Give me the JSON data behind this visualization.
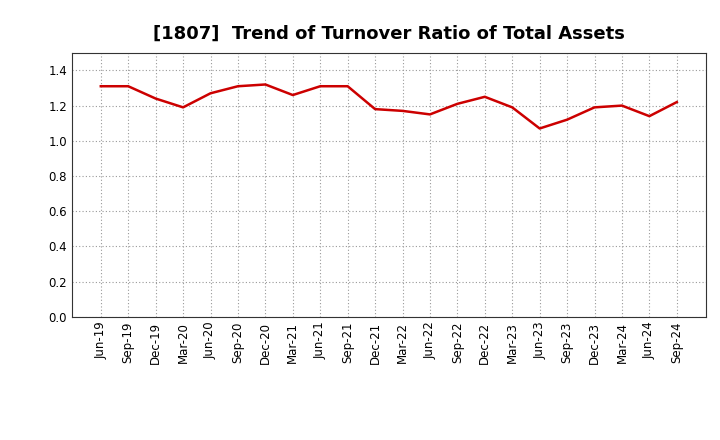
{
  "title": "[1807]  Trend of Turnover Ratio of Total Assets",
  "x_labels": [
    "Jun-19",
    "Sep-19",
    "Dec-19",
    "Mar-20",
    "Jun-20",
    "Sep-20",
    "Dec-20",
    "Mar-21",
    "Jun-21",
    "Sep-21",
    "Dec-21",
    "Mar-22",
    "Jun-22",
    "Sep-22",
    "Dec-22",
    "Mar-23",
    "Jun-23",
    "Sep-23",
    "Dec-23",
    "Mar-24",
    "Jun-24",
    "Sep-24"
  ],
  "values": [
    1.31,
    1.31,
    1.24,
    1.19,
    1.27,
    1.31,
    1.32,
    1.26,
    1.31,
    1.31,
    1.18,
    1.17,
    1.15,
    1.21,
    1.25,
    1.19,
    1.07,
    1.12,
    1.19,
    1.2,
    1.14,
    1.22
  ],
  "line_color": "#cc0000",
  "line_width": 1.8,
  "background_color": "#ffffff",
  "plot_bg_color": "#ffffff",
  "grid_color": "#999999",
  "ylim": [
    0.0,
    1.5
  ],
  "yticks": [
    0.0,
    0.2,
    0.4,
    0.6,
    0.8,
    1.0,
    1.2,
    1.4
  ],
  "title_fontsize": 13,
  "tick_fontsize": 8.5
}
